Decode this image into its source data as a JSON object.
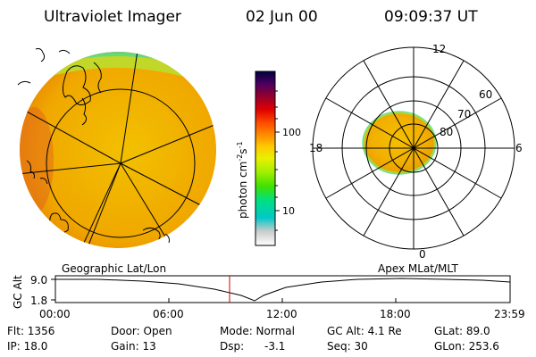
{
  "header": {
    "title": "Ultraviolet Imager",
    "date": "02 Jun 00",
    "time": "09:09:37 UT"
  },
  "colorbar": {
    "label": "photon cm",
    "label_exp1": "-2",
    "label_mid": "s",
    "label_exp2": "-1",
    "ticks": [
      "100",
      "10"
    ],
    "colors": [
      "#ffffff",
      "#d0d0d0",
      "#00c8c8",
      "#00e080",
      "#40e000",
      "#a0f000",
      "#e8f000",
      "#ffc800",
      "#ff9000",
      "#ff5000",
      "#e00000",
      "#900030",
      "#4a0060",
      "#000040"
    ]
  },
  "polar_plot": {
    "labels": [
      "12",
      "60",
      "70",
      "80",
      "18",
      "6",
      "0"
    ]
  },
  "panel_labels": {
    "left": "Geographic Lat/Lon",
    "right": "Apex MLat/MLT"
  },
  "altitude_plot": {
    "axis_label": "GC Alt",
    "y_ticks": [
      "9.0",
      "1.8"
    ],
    "x_ticks": [
      "00:00",
      "06:00",
      "12:00",
      "18:00",
      "23:59"
    ]
  },
  "info": {
    "row1": {
      "flt": "Flt: 1356",
      "door": "Door: Open",
      "mode": "Mode: Normal",
      "gcalt": "GC Alt: 4.1 Re",
      "glat": "GLat: 89.0"
    },
    "row2": {
      "ip": "IP: 18.0",
      "gain": "Gain: 13",
      "dsp_label": "Dsp:",
      "dsp_value": "-3.1",
      "seq": "Seq: 30",
      "glon": "GLon: 253.6"
    }
  }
}
